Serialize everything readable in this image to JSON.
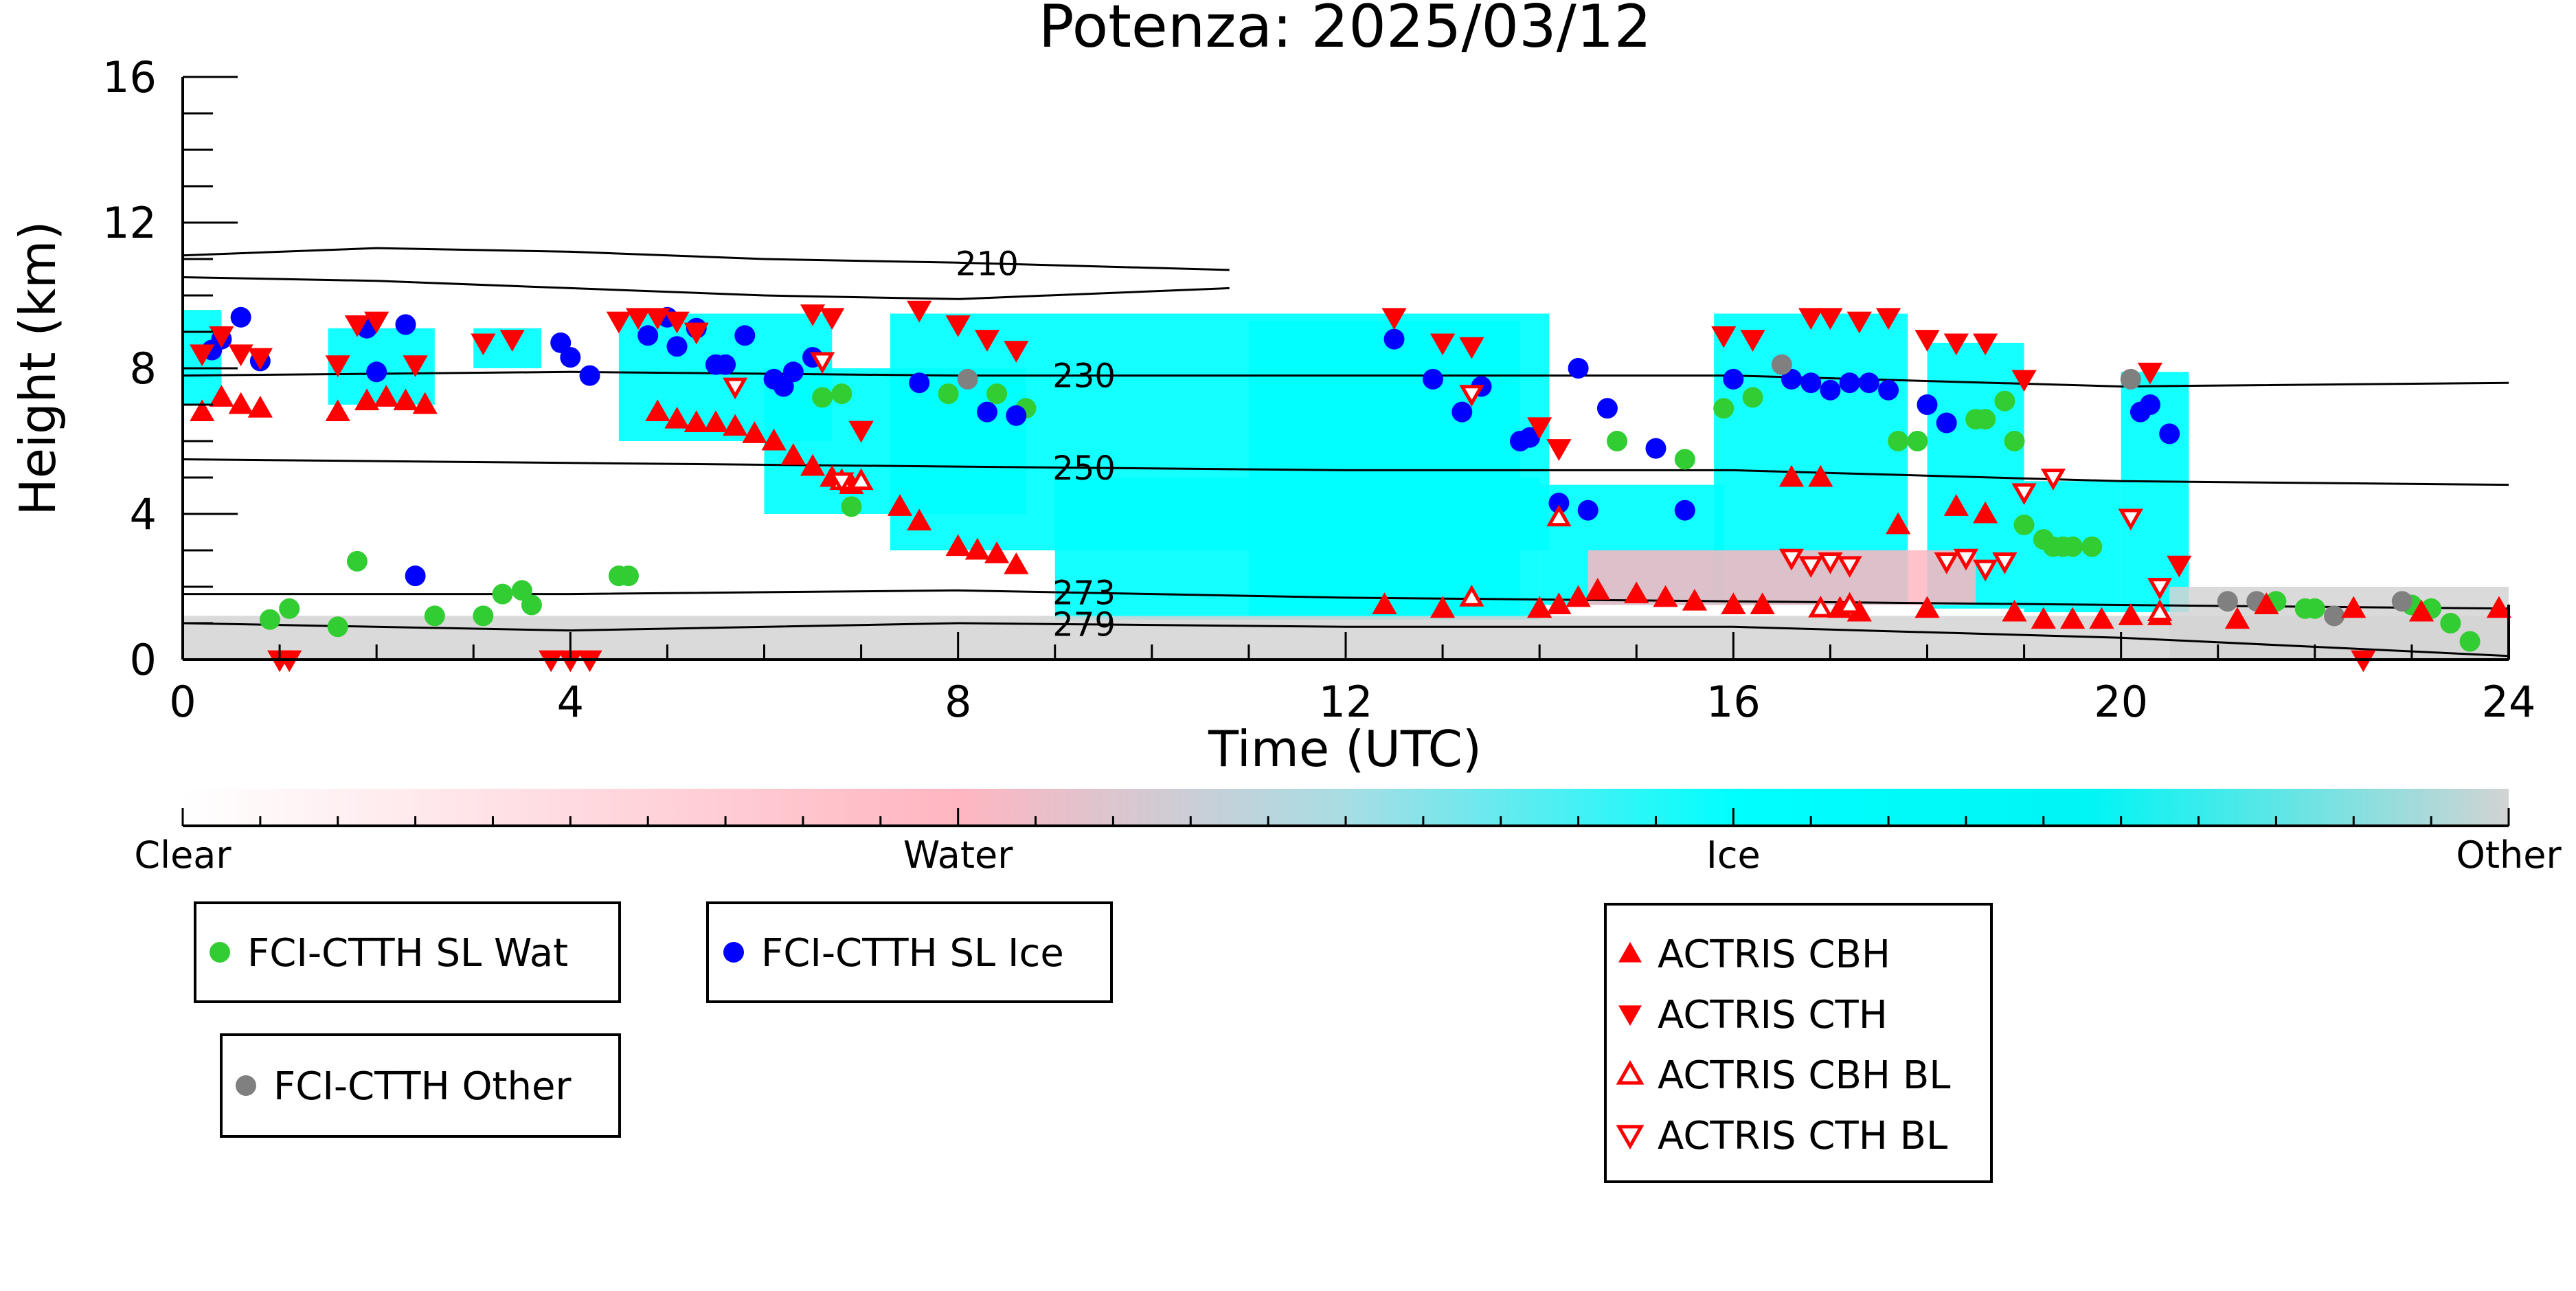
{
  "chart_data": {
    "type": "scatter",
    "title": "Potenza: 2025/03/12",
    "xlabel": "Time (UTC)",
    "ylabel": "Height (km)",
    "xlim": [
      0,
      24
    ],
    "ylim": [
      0,
      16
    ],
    "x_ticks": [
      "0",
      "4",
      "8",
      "12",
      "16",
      "20",
      "24"
    ],
    "y_ticks": [
      "0",
      "4",
      "8",
      "12",
      "16"
    ],
    "grid": false,
    "colorbar": {
      "labels": [
        "Clear",
        "Water",
        "Ice",
        "Other"
      ],
      "colors": [
        "#ffffff",
        "#ffb6c1",
        "#00ffff",
        "#d3d3d3"
      ]
    },
    "contours": [
      {
        "label": "210",
        "x": [
          0,
          2,
          4,
          6,
          8,
          10.8
        ],
        "y": [
          11.1,
          11.3,
          11.2,
          11.0,
          10.9,
          10.7
        ]
      },
      {
        "label": "210",
        "x": [
          0,
          2,
          4,
          6,
          8,
          10.8
        ],
        "y": [
          10.5,
          10.4,
          10.2,
          10.0,
          9.9,
          10.2
        ]
      },
      {
        "label": "230",
        "x": [
          0,
          4,
          8,
          12,
          16,
          20,
          24
        ],
        "y": [
          7.8,
          7.9,
          7.8,
          7.8,
          7.8,
          7.5,
          7.6
        ]
      },
      {
        "label": "250",
        "x": [
          0,
          4,
          8,
          12,
          16,
          20,
          24
        ],
        "y": [
          5.5,
          5.4,
          5.3,
          5.2,
          5.2,
          4.9,
          4.8
        ]
      },
      {
        "label": "273",
        "x": [
          0,
          4,
          8,
          12,
          16,
          20,
          24
        ],
        "y": [
          1.8,
          1.8,
          1.9,
          1.7,
          1.6,
          1.5,
          1.4
        ]
      },
      {
        "label": "279",
        "x": [
          0,
          4,
          8,
          12,
          16,
          20,
          24
        ],
        "y": [
          1.0,
          0.8,
          1.0,
          0.9,
          0.9,
          0.6,
          0.1
        ]
      }
    ],
    "cloud_regions": [
      {
        "class": "Ice",
        "x0": 0.0,
        "x1": 0.4,
        "y0": 7.0,
        "y1": 9.6
      },
      {
        "class": "Ice",
        "x0": 1.5,
        "x1": 2.6,
        "y0": 7.0,
        "y1": 9.1
      },
      {
        "class": "Ice",
        "x0": 3.0,
        "x1": 3.7,
        "y0": 8.0,
        "y1": 9.1
      },
      {
        "class": "Ice",
        "x0": 4.5,
        "x1": 6.7,
        "y0": 6.0,
        "y1": 9.5
      },
      {
        "class": "Ice",
        "x0": 6.0,
        "x1": 8.7,
        "y0": 4.0,
        "y1": 8.0
      },
      {
        "class": "Ice",
        "x0": 7.3,
        "x1": 14.1,
        "y0": 3.0,
        "y1": 9.5
      },
      {
        "class": "Ice",
        "x0": 9.0,
        "x1": 14.0,
        "y0": 1.1,
        "y1": 5.0
      },
      {
        "class": "Ice",
        "x0": 11.0,
        "x1": 13.8,
        "y0": 1.2,
        "y1": 9.3
      },
      {
        "class": "Ice",
        "x0": 14.0,
        "x1": 15.9,
        "y0": 1.5,
        "y1": 4.8
      },
      {
        "class": "Ice",
        "x0": 15.8,
        "x1": 17.8,
        "y0": 1.5,
        "y1": 9.5
      },
      {
        "class": "Ice",
        "x0": 18.0,
        "x1": 19.0,
        "y0": 1.4,
        "y1": 8.7
      },
      {
        "class": "Ice",
        "x0": 19.0,
        "x1": 20.0,
        "y0": 1.3,
        "y1": 4.9
      },
      {
        "class": "Ice",
        "x0": 20.0,
        "x1": 20.7,
        "y0": 1.3,
        "y1": 7.9
      },
      {
        "class": "Water",
        "x0": 14.5,
        "x1": 18.5,
        "y0": 1.5,
        "y1": 3.0
      },
      {
        "class": "Other",
        "x0": 0.0,
        "x1": 24.0,
        "y0": 0.0,
        "y1": 1.2
      },
      {
        "class": "Other",
        "x0": 20.5,
        "x1": 24.0,
        "y0": 0.0,
        "y1": 2.0
      }
    ],
    "series": [
      {
        "name": "FCI-CTTH SL Wat",
        "marker": "circle",
        "color": "#32cd32",
        "x": [
          0.9,
          1.1,
          1.6,
          1.8,
          2.6,
          3.1,
          3.3,
          3.5,
          3.6,
          4.5,
          4.6,
          6.6,
          6.8,
          6.9,
          7.9,
          8.4,
          8.7,
          14.8,
          15.5,
          15.9,
          16.2,
          17.7,
          17.9,
          18.5,
          18.6,
          18.8,
          18.9,
          19.0,
          19.2,
          19.3,
          19.4,
          19.5,
          19.7,
          21.6,
          21.9,
          22.0,
          23.0,
          23.2,
          23.4,
          23.6
        ],
        "y": [
          1.1,
          1.4,
          0.9,
          2.7,
          1.2,
          1.2,
          1.8,
          1.9,
          1.5,
          2.3,
          2.3,
          7.2,
          7.3,
          4.2,
          7.3,
          7.3,
          6.9,
          6.0,
          5.5,
          6.9,
          7.2,
          6.0,
          6.0,
          6.6,
          6.6,
          7.1,
          6.0,
          3.7,
          3.3,
          3.1,
          3.1,
          3.1,
          3.1,
          1.6,
          1.4,
          1.4,
          1.5,
          1.4,
          1.0,
          0.5
        ]
      },
      {
        "name": "FCI-CTTH SL Ice",
        "marker": "circle",
        "color": "#0000ff",
        "x": [
          0.3,
          0.4,
          0.6,
          0.8,
          1.9,
          2.0,
          2.3,
          2.4,
          3.9,
          4.0,
          4.2,
          4.8,
          5.0,
          5.1,
          5.3,
          5.5,
          5.6,
          5.8,
          6.1,
          6.2,
          6.3,
          6.5,
          7.6,
          8.3,
          8.6,
          12.5,
          12.9,
          13.2,
          13.4,
          13.8,
          13.9,
          14.2,
          14.4,
          14.5,
          14.7,
          15.2,
          15.5,
          16.0,
          16.6,
          16.8,
          17.0,
          17.2,
          17.4,
          17.6,
          18.0,
          18.2,
          20.2,
          20.3,
          20.5
        ],
        "y": [
          8.5,
          8.8,
          9.4,
          8.2,
          9.1,
          7.9,
          9.2,
          2.3,
          8.7,
          8.3,
          7.8,
          8.9,
          9.4,
          8.6,
          9.1,
          8.1,
          8.1,
          8.9,
          7.7,
          7.5,
          7.9,
          8.3,
          7.6,
          6.8,
          6.7,
          8.8,
          7.7,
          6.8,
          7.5,
          6.0,
          6.1,
          4.3,
          8.0,
          4.1,
          6.9,
          5.8,
          4.1,
          7.7,
          7.7,
          7.6,
          7.4,
          7.6,
          7.6,
          7.4,
          7.0,
          6.5,
          6.8,
          7.0,
          6.2
        ]
      },
      {
        "name": "FCI-CTTH Other",
        "marker": "circle",
        "color": "#808080",
        "x": [
          8.1,
          16.5,
          20.1,
          21.1,
          21.4,
          22.2,
          22.9
        ],
        "y": [
          7.7,
          8.1,
          7.7,
          1.6,
          1.6,
          1.2,
          1.6
        ]
      },
      {
        "name": "ACTRIS CBH",
        "marker": "triangle-up",
        "filled": true,
        "color": "#ff0000",
        "x": [
          0.2,
          0.4,
          0.6,
          0.8,
          1.6,
          1.9,
          2.1,
          2.3,
          2.5,
          4.9,
          5.1,
          5.3,
          5.5,
          5.7,
          5.9,
          6.1,
          6.3,
          6.5,
          6.7,
          6.9,
          7.4,
          7.6,
          8.0,
          8.2,
          8.4,
          8.6,
          12.4,
          13.0,
          14.0,
          14.2,
          14.4,
          14.6,
          15.0,
          15.3,
          15.6,
          16.0,
          16.3,
          16.6,
          16.9,
          17.1,
          17.3,
          17.7,
          18.0,
          18.3,
          18.6,
          18.9,
          19.2,
          19.5,
          19.8,
          20.1,
          20.4,
          21.2,
          21.5,
          22.4,
          23.1,
          23.9
        ],
        "y": [
          6.8,
          7.2,
          7.0,
          6.9,
          6.8,
          7.1,
          7.2,
          7.1,
          7.0,
          6.8,
          6.6,
          6.5,
          6.5,
          6.4,
          6.2,
          6.0,
          5.6,
          5.3,
          5.0,
          4.8,
          4.2,
          3.8,
          3.1,
          3.0,
          2.9,
          2.6,
          1.5,
          1.4,
          1.4,
          1.5,
          1.7,
          1.9,
          1.8,
          1.7,
          1.6,
          1.5,
          1.5,
          5.0,
          5.0,
          1.4,
          1.3,
          3.7,
          1.4,
          4.2,
          4.0,
          1.3,
          1.1,
          1.1,
          1.1,
          1.2,
          1.2,
          1.1,
          1.5,
          1.4,
          1.3,
          1.4
        ]
      },
      {
        "name": "ACTRIS CTH",
        "marker": "triangle-down",
        "filled": true,
        "color": "#ff0000",
        "x": [
          0.2,
          0.4,
          0.6,
          0.8,
          1.0,
          1.1,
          1.6,
          1.8,
          2.0,
          2.4,
          3.1,
          3.4,
          3.8,
          4.0,
          4.2,
          4.5,
          4.7,
          4.9,
          5.1,
          5.3,
          6.5,
          6.7,
          7.0,
          7.6,
          8.0,
          8.3,
          8.6,
          12.5,
          13.0,
          13.3,
          14.0,
          14.2,
          15.9,
          16.2,
          16.8,
          17.0,
          17.3,
          17.6,
          18.0,
          18.3,
          18.6,
          19.0,
          20.3,
          20.6,
          22.5
        ],
        "y": [
          8.4,
          8.9,
          8.4,
          8.3,
          0.0,
          0.0,
          8.1,
          9.2,
          9.3,
          8.1,
          8.7,
          8.8,
          0.0,
          0.0,
          0.0,
          9.3,
          9.4,
          9.4,
          9.3,
          9.0,
          9.5,
          9.4,
          6.3,
          9.6,
          9.2,
          8.8,
          8.5,
          9.4,
          8.7,
          8.6,
          6.4,
          5.8,
          8.9,
          8.8,
          9.4,
          9.4,
          9.3,
          9.4,
          8.8,
          8.7,
          8.7,
          7.7,
          7.9,
          2.6,
          0.0
        ]
      },
      {
        "name": "ACTRIS CBH BL",
        "marker": "triangle-up",
        "filled": false,
        "color": "#ff0000",
        "x": [
          6.8,
          7.0,
          13.3,
          14.2,
          16.9,
          17.2,
          20.4
        ],
        "y": [
          4.9,
          4.9,
          1.7,
          3.9,
          1.4,
          1.5,
          1.3
        ]
      },
      {
        "name": "ACTRIS CTH BL",
        "marker": "triangle-down",
        "filled": false,
        "color": "#ff0000",
        "x": [
          5.7,
          6.6,
          6.8,
          13.3,
          16.6,
          16.8,
          17.0,
          17.2,
          18.2,
          18.4,
          18.6,
          18.8,
          19.0,
          19.3,
          20.1,
          20.4
        ],
        "y": [
          7.5,
          8.2,
          4.9,
          7.3,
          2.8,
          2.6,
          2.7,
          2.6,
          2.7,
          2.8,
          2.5,
          2.7,
          4.6,
          5.0,
          3.9,
          2.0
        ]
      }
    ]
  }
}
